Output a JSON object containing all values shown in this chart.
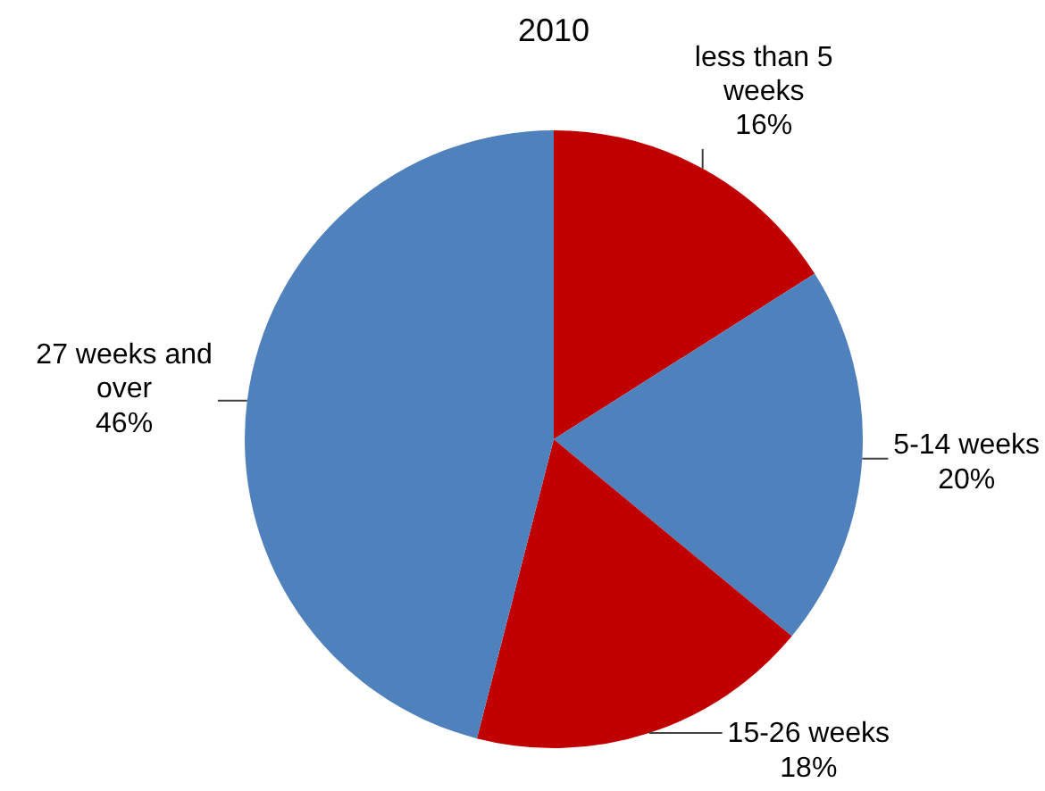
{
  "chart_data": {
    "type": "pie",
    "title": "2010",
    "categories": [
      "less than 5 weeks",
      "5-14 weeks",
      "15-26 weeks",
      "27 weeks and over"
    ],
    "values": [
      16,
      20,
      18,
      46
    ],
    "colors": [
      "#c00000",
      "#4f81bd",
      "#c00000",
      "#4f81bd"
    ],
    "value_labels": [
      "16%",
      "20%",
      "18%",
      "46%"
    ]
  }
}
